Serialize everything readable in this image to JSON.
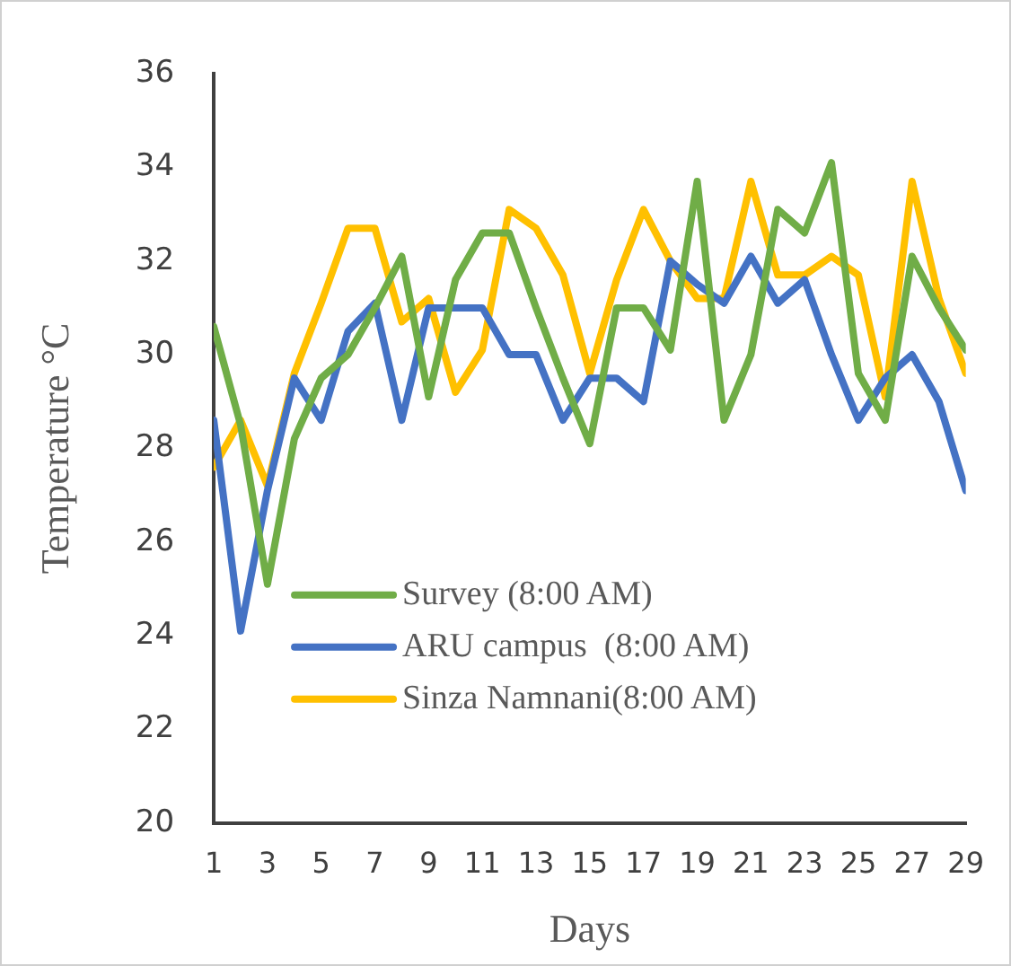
{
  "chart_data": {
    "type": "line",
    "xlabel": "Days",
    "ylabel": "Temperature °C",
    "x": [
      1,
      2,
      3,
      4,
      5,
      6,
      7,
      8,
      9,
      10,
      11,
      12,
      13,
      14,
      15,
      16,
      17,
      18,
      19,
      20,
      21,
      22,
      23,
      24,
      25,
      26,
      27,
      28,
      29
    ],
    "xlim": [
      1,
      29
    ],
    "xticks": [
      1,
      3,
      5,
      7,
      9,
      11,
      13,
      15,
      17,
      19,
      21,
      23,
      25,
      27,
      29
    ],
    "series": [
      {
        "name": "Survey (8:00 AM)",
        "color": "#70ad47",
        "values": [
          30.6,
          28.5,
          25.1,
          28.2,
          29.5,
          30.0,
          31.0,
          32.1,
          29.1,
          31.6,
          32.6,
          32.6,
          31.0,
          29.5,
          28.1,
          31.0,
          31.0,
          30.1,
          33.7,
          28.6,
          30.0,
          33.1,
          32.6,
          34.1,
          29.6,
          28.6,
          32.1,
          31.0,
          30.1
        ]
      },
      {
        "name": "ARU campus  (8:00 AM)",
        "color": "#4472c4",
        "values": [
          28.6,
          24.1,
          27.1,
          29.5,
          28.6,
          30.5,
          31.1,
          28.6,
          31.0,
          31.0,
          31.0,
          30.0,
          30.0,
          28.6,
          29.5,
          29.5,
          29.0,
          32.0,
          31.5,
          31.1,
          32.1,
          31.1,
          31.6,
          30.0,
          28.6,
          29.5,
          30.0,
          29.0,
          27.1
        ]
      },
      {
        "name": "Sinza Namnani(8:00 AM)",
        "color": "#ffc000",
        "values": [
          27.6,
          28.6,
          27.2,
          29.6,
          31.1,
          32.7,
          32.7,
          30.7,
          31.2,
          29.2,
          30.1,
          33.1,
          32.7,
          31.7,
          29.6,
          31.6,
          33.1,
          32.0,
          31.2,
          31.2,
          33.7,
          31.7,
          31.7,
          32.1,
          31.7,
          29.1,
          33.7,
          31.2,
          29.6
        ]
      }
    ],
    "ylim": [
      20,
      36
    ],
    "yticks": [
      20,
      22,
      24,
      26,
      28,
      30,
      32,
      34,
      36
    ],
    "grid": false,
    "legend": "bottom left",
    "marker": "none",
    "line_style": "solid"
  }
}
